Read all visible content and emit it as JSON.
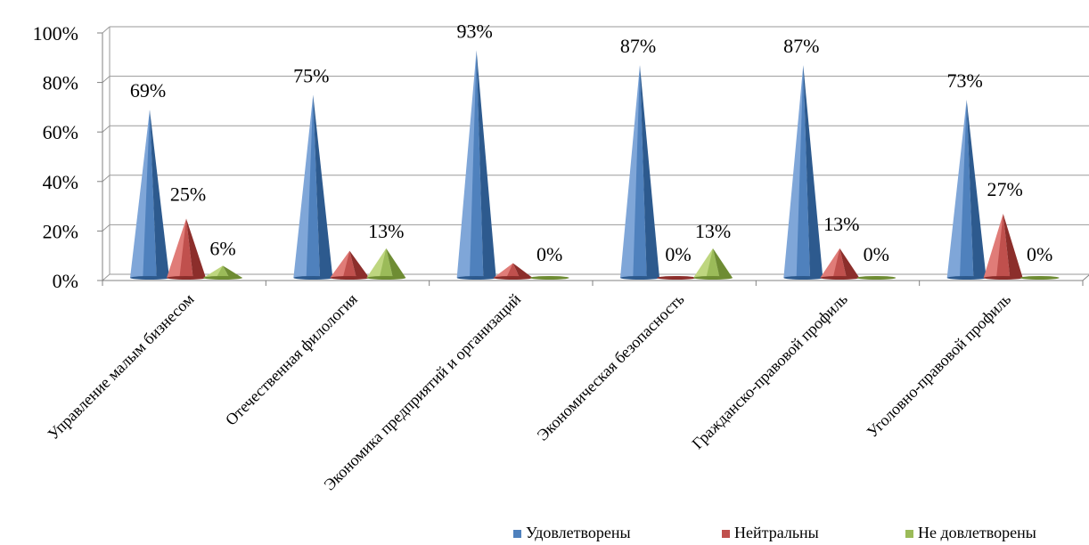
{
  "chart_data": {
    "type": "bar",
    "bar_shape": "3d-cone",
    "categories": [
      "Управление малым бизнесом",
      "Отечественная филология",
      "Экономика предприятий и организаций",
      "Экономическая безопасность",
      "Гражданско-правовой профиль",
      "Уголовно-правовой профиль"
    ],
    "series": [
      {
        "name": "Удовлетворены",
        "values": [
          69,
          75,
          93,
          87,
          87,
          73
        ],
        "labels": [
          "69%",
          "75%",
          "93%",
          "87%",
          "87%",
          "73%"
        ]
      },
      {
        "name": "Нейтральны",
        "values": [
          25,
          12,
          7,
          0,
          13,
          27
        ],
        "labels": [
          "25%",
          "",
          "",
          "0%",
          "13%",
          "27%"
        ]
      },
      {
        "name": "Не довлетворены",
        "values": [
          6,
          13,
          0,
          13,
          0,
          0
        ],
        "labels": [
          "6%",
          "13%",
          "0%",
          "13%",
          "0%",
          "0%"
        ]
      }
    ],
    "ylim": [
      0,
      100
    ],
    "yticks": [
      "0%",
      "20%",
      "40%",
      "60%",
      "80%",
      "100%"
    ],
    "grid": true,
    "legend": "bottom-right"
  },
  "colors": {
    "series": [
      "#4F81BD",
      "#C0504D",
      "#9BBB59"
    ],
    "series_dark": [
      "#2D5A8E",
      "#8C2E2B",
      "#6E8C33"
    ],
    "series_light": [
      "#7FA6D8",
      "#E07C78",
      "#BED67F"
    ],
    "grid": "#9A9A9A",
    "axis": "#808080"
  }
}
